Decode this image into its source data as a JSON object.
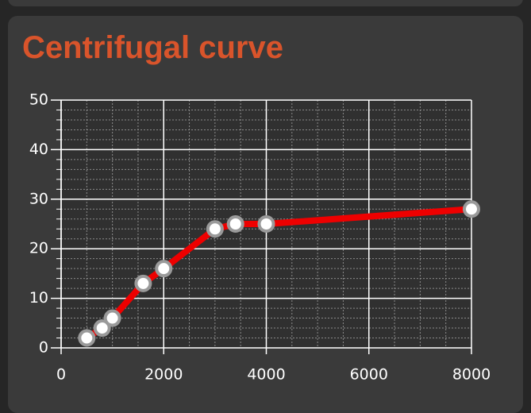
{
  "chart_data": {
    "type": "line",
    "title": "Centrifugal curve",
    "x": [
      500,
      800,
      1000,
      1600,
      2000,
      3000,
      3400,
      4000,
      8000
    ],
    "values": [
      2,
      4,
      6,
      13,
      16,
      24,
      25,
      25,
      28
    ],
    "color": "#ee0000",
    "xlim": [
      0,
      8000
    ],
    "xticks": [
      0,
      2000,
      4000,
      6000,
      8000
    ],
    "ylim": [
      0,
      50
    ],
    "yticks": [
      0,
      10,
      20,
      30,
      40,
      50
    ],
    "grid": true,
    "minor_grid": true
  }
}
